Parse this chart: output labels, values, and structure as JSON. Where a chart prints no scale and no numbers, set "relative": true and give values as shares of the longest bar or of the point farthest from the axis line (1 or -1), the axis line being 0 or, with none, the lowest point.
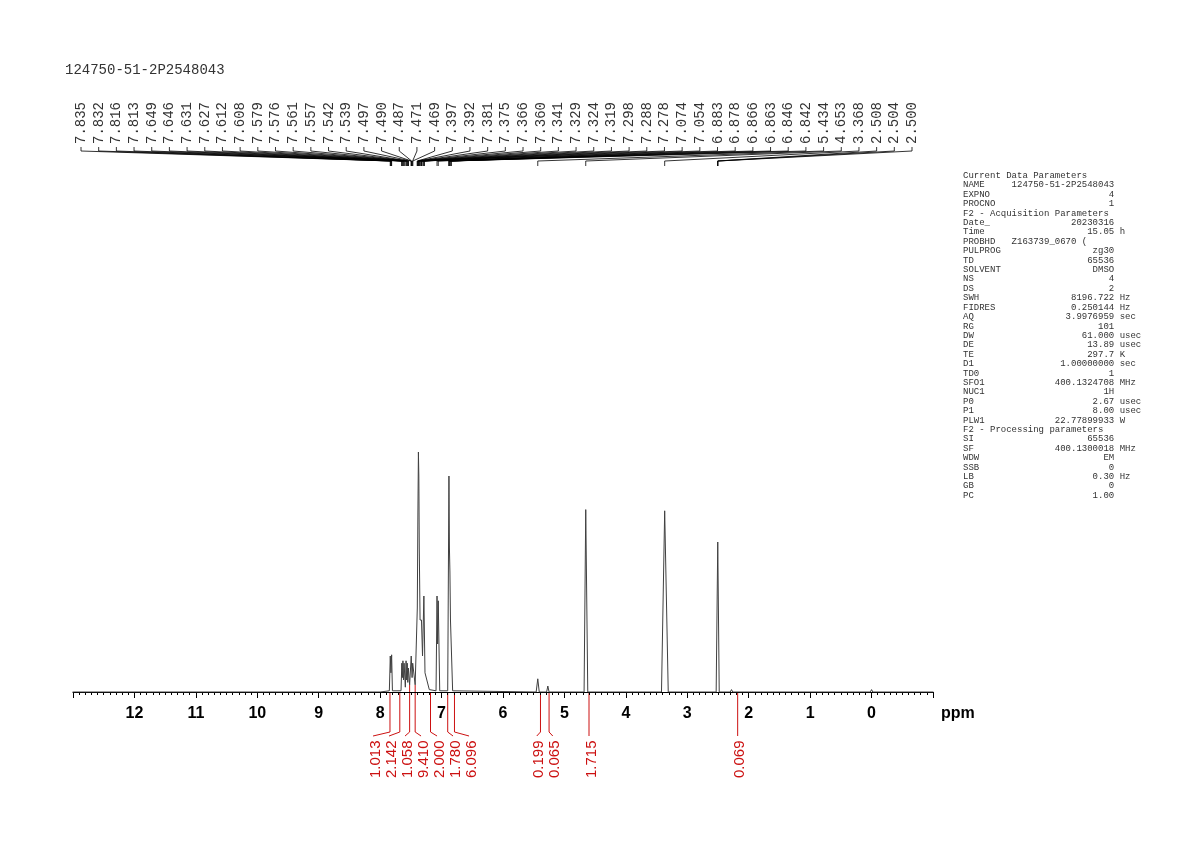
{
  "chart_data": {
    "type": "line",
    "title": "124750-51-2P2548043",
    "xlabel": "ppm",
    "relative": true,
    "color": "#404040",
    "marker": "none",
    "line_style": "solid",
    "grid": false,
    "tick_labels": "x",
    "xlim": [
      13,
      -1
    ],
    "xticks": [
      12,
      11,
      10,
      9,
      8,
      7,
      6,
      5,
      4,
      3,
      2,
      1,
      0
    ],
    "x": [
      13,
      8.0,
      7.85,
      7.835,
      7.824,
      7.813,
      7.8,
      7.66,
      7.647,
      7.638,
      7.629,
      7.62,
      7.61,
      7.59,
      7.578,
      7.568,
      7.559,
      7.55,
      7.541,
      7.52,
      7.494,
      7.48,
      7.47,
      7.43,
      7.395,
      7.385,
      7.377,
      7.37,
      7.363,
      7.35,
      7.327,
      7.31,
      7.288,
      7.27,
      7.2,
      7.09,
      7.074,
      7.064,
      7.054,
      7.03,
      6.9,
      6.88,
      6.872,
      6.864,
      6.855,
      6.844,
      6.82,
      5.46,
      5.434,
      5.41,
      5.29,
      5.27,
      5.25,
      4.68,
      4.653,
      4.62,
      3.42,
      3.368,
      3.31,
      2.53,
      2.504,
      2.48,
      2.3,
      2.28,
      2.26,
      0.02,
      0,
      -0.02,
      -1
    ],
    "values": [
      0,
      0,
      0.005,
      0.15,
      0.08,
      0.155,
      0.005,
      0.005,
      0.12,
      0.06,
      0.13,
      0.05,
      0.12,
      0.02,
      0.13,
      0.05,
      0.12,
      0.04,
      0.1,
      0.03,
      0.15,
      0.06,
      0.12,
      0.03,
      0.35,
      0.75,
      1.0,
      0.9,
      0.6,
      0.3,
      0.3,
      0.15,
      0.4,
      0.08,
      0.01,
      0.005,
      0.4,
      0.2,
      0.38,
      0.005,
      0.005,
      0.9,
      0.6,
      0.5,
      0.3,
      0.3,
      0.005,
      0,
      0.055,
      0,
      0,
      0.025,
      0,
      0,
      0.76,
      0,
      0,
      0.755,
      0,
      0,
      0.625,
      0,
      0,
      0.01,
      0,
      0,
      0.01,
      0,
      0
    ],
    "annotations": [
      {
        "text": "7.835",
        "x": 7.835
      },
      {
        "text": "7.832",
        "x": 7.832
      },
      {
        "text": "7.816",
        "x": 7.816
      },
      {
        "text": "7.813",
        "x": 7.813
      },
      {
        "text": "7.649",
        "x": 7.649
      },
      {
        "text": "7.646",
        "x": 7.646
      },
      {
        "text": "7.631",
        "x": 7.631
      },
      {
        "text": "7.627",
        "x": 7.627
      },
      {
        "text": "7.612",
        "x": 7.612
      },
      {
        "text": "7.608",
        "x": 7.608
      },
      {
        "text": "7.579",
        "x": 7.579
      },
      {
        "text": "7.576",
        "x": 7.576
      },
      {
        "text": "7.561",
        "x": 7.561
      },
      {
        "text": "7.557",
        "x": 7.557
      },
      {
        "text": "7.542",
        "x": 7.542
      },
      {
        "text": "7.539",
        "x": 7.539
      },
      {
        "text": "7.497",
        "x": 7.497
      },
      {
        "text": "7.490",
        "x": 7.49
      },
      {
        "text": "7.487",
        "x": 7.487
      },
      {
        "text": "7.471",
        "x": 7.471
      },
      {
        "text": "7.469",
        "x": 7.469
      },
      {
        "text": "7.397",
        "x": 7.397
      },
      {
        "text": "7.392",
        "x": 7.392
      },
      {
        "text": "7.381",
        "x": 7.381
      },
      {
        "text": "7.375",
        "x": 7.375
      },
      {
        "text": "7.366",
        "x": 7.366
      },
      {
        "text": "7.360",
        "x": 7.36
      },
      {
        "text": "7.341",
        "x": 7.341
      },
      {
        "text": "7.329",
        "x": 7.329
      },
      {
        "text": "7.324",
        "x": 7.324
      },
      {
        "text": "7.319",
        "x": 7.319
      },
      {
        "text": "7.298",
        "x": 7.298
      },
      {
        "text": "7.288",
        "x": 7.288
      },
      {
        "text": "7.278",
        "x": 7.278
      },
      {
        "text": "7.074",
        "x": 7.074
      },
      {
        "text": "7.054",
        "x": 7.054
      },
      {
        "text": "6.883",
        "x": 6.883
      },
      {
        "text": "6.878",
        "x": 6.878
      },
      {
        "text": "6.866",
        "x": 6.866
      },
      {
        "text": "6.863",
        "x": 6.863
      },
      {
        "text": "6.846",
        "x": 6.846
      },
      {
        "text": "6.842",
        "x": 6.842
      },
      {
        "text": "5.434",
        "x": 5.434
      },
      {
        "text": "4.653",
        "x": 4.653
      },
      {
        "text": "3.368",
        "x": 3.368
      },
      {
        "text": "2.508",
        "x": 2.508
      },
      {
        "text": "2.504",
        "x": 2.504
      },
      {
        "text": "2.500",
        "x": 2.5
      },
      {
        "text": "1.013",
        "x": 7.84,
        "y": 0
      },
      {
        "text": "2.142",
        "x": 7.68,
        "y": 0
      },
      {
        "text": "1.058",
        "x": 7.52,
        "y": 0.03
      },
      {
        "text": "9.410",
        "x": 7.43,
        "y": 0.03
      },
      {
        "text": "2.000",
        "x": 7.18,
        "y": 0
      },
      {
        "text": "1.780",
        "x": 6.9,
        "y": 0
      },
      {
        "text": "6.096",
        "x": 6.79,
        "y": 0
      },
      {
        "text": "0.199",
        "x": 5.39,
        "y": 0
      },
      {
        "text": "0.065",
        "x": 5.25,
        "y": 0
      },
      {
        "text": "1.715",
        "x": 4.6,
        "y": 0
      },
      {
        "text": "0.069",
        "x": 2.18,
        "y": 0
      },
      "Current Data Parameters",
      "NAME     124750-51-2P2548043",
      "EXPNO                      4",
      "PROCNO                     1",
      "F2 - Acquisition Parameters",
      "Date_               20230316",
      "Time                   15.05 h",
      "PROBHD   Z163739_0670 (",
      "PULPROG                 zg30",
      "TD                     65536",
      "SOLVENT                 DMSO",
      "NS                         4",
      "DS                         2",
      "SWH                 8196.722 Hz",
      "FIDRES              0.250144 Hz",
      "AQ                 3.9976959 sec",
      "RG                       101",
      "DW                    61.000 usec",
      "DE                     13.89 usec",
      "TE                     297.7 K",
      "D1                1.00000000 sec",
      "TD0                        1",
      "SFO1             400.1324708 MHz",
      "NUC1                      1H",
      "P0                      2.67 usec",
      "P1                      8.00 usec",
      "PLW1             22.77899933 W",
      "F2 - Processing parameters",
      "SI                     65536",
      "SF               400.1300018 MHz",
      "WDW                       EM",
      "SSB                        0",
      "LB                      0.30 Hz",
      "GB                         0",
      "PC                      1.00"
    ]
  }
}
